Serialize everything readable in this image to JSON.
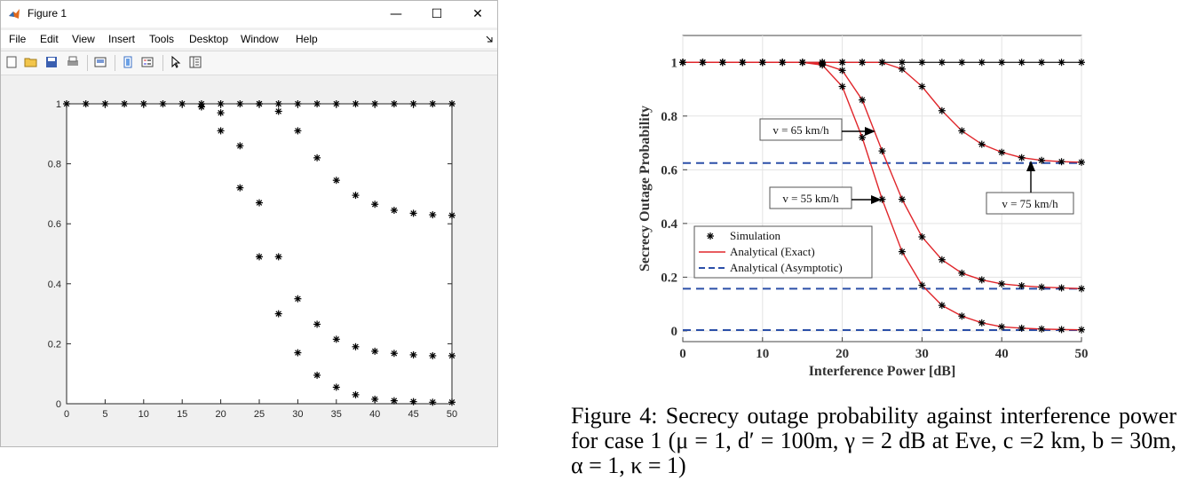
{
  "window": {
    "title": "Figure 1",
    "controls": {
      "minimize": "—",
      "maximize": "☐",
      "close": "✕"
    },
    "menu": [
      "File",
      "Edit",
      "View",
      "Insert",
      "Tools",
      "Desktop",
      "Window",
      "Help"
    ],
    "toolbar_icons": [
      "new-figure-icon",
      "open-file-icon",
      "save-icon",
      "print-icon",
      "print-preview-icon",
      "link-plot-icon",
      "insert-legend-icon",
      "pointer-icon",
      "property-editor-icon"
    ]
  },
  "matlab_plot": {
    "chart_data": {
      "type": "scatter",
      "marker": "*",
      "marker_color": "#000000",
      "xlim": [
        0,
        50
      ],
      "ylim": [
        0,
        1
      ],
      "x_ticks": [
        "0",
        "5",
        "10",
        "15",
        "20",
        "25",
        "30",
        "35",
        "40",
        "45",
        "50"
      ],
      "y_ticks": [
        "0",
        "0.2",
        "0.4",
        "0.6",
        "0.8",
        "1"
      ],
      "series": [
        {
          "x": [
            0,
            2.5,
            5,
            7.5,
            10,
            12.5,
            15,
            17.5,
            20,
            22.5,
            25,
            27.5,
            30,
            32.5,
            35,
            37.5,
            40,
            42.5,
            45,
            47.5,
            50
          ],
          "y": [
            1,
            1,
            1,
            1,
            1,
            1,
            1,
            1,
            1,
            1,
            1,
            1,
            1,
            1,
            1,
            1,
            1,
            1,
            1,
            1,
            1
          ]
        },
        {
          "x": [
            17.5,
            20,
            22.5,
            25,
            27.5,
            30,
            32.5,
            35,
            37.5,
            40,
            42.5,
            45,
            47.5,
            50
          ],
          "y": [
            0.99,
            0.97,
            0.86,
            0.67,
            0.49,
            0.35,
            0.265,
            0.215,
            0.19,
            0.175,
            0.168,
            0.163,
            0.16,
            0.16
          ]
        },
        {
          "x": [
            17.5,
            20,
            22.5,
            25,
            27.5,
            30,
            32.5,
            35,
            37.5,
            40,
            42.5,
            45,
            47.5,
            50
          ],
          "y": [
            0.99,
            0.91,
            0.72,
            0.49,
            0.3,
            0.17,
            0.095,
            0.055,
            0.03,
            0.015,
            0.01,
            0.007,
            0.005,
            0.005
          ]
        },
        {
          "x": [
            25,
            27.5,
            30,
            32.5,
            35,
            37.5,
            40,
            42.5,
            45,
            47.5,
            50
          ],
          "y": [
            1,
            0.975,
            0.91,
            0.82,
            0.745,
            0.695,
            0.665,
            0.645,
            0.635,
            0.63,
            0.628
          ]
        }
      ]
    }
  },
  "paper_figure": {
    "chart_data": {
      "type": "line",
      "xlabel": "Interference Power  [dB]",
      "ylabel": "Secrecy Outage Probability",
      "xlim": [
        0,
        50
      ],
      "ylim": [
        0,
        1
      ],
      "x_ticks": [
        "0",
        "10",
        "20",
        "30",
        "40",
        "50"
      ],
      "y_ticks": [
        "0",
        "0.2",
        "0.4",
        "0.6",
        "0.8",
        "1"
      ],
      "colors": {
        "exact": "#e0262b",
        "asymptotic": "#2b4fa8",
        "sim": "#000000"
      },
      "legend": {
        "placement": "bottom-left",
        "entries": [
          "Simulation",
          "Analytical (Exact)",
          "Analytical (Asymptotic)"
        ]
      },
      "series": [
        {
          "x": [
            0,
            2.5,
            5,
            7.5,
            10,
            12.5,
            15,
            17.5,
            20,
            22.5,
            25,
            27.5,
            30,
            32.5,
            35,
            37.5,
            40,
            42.5,
            45,
            47.5,
            50
          ],
          "y": [
            1,
            1,
            1,
            1,
            1,
            1,
            1,
            1,
            1,
            1,
            1,
            1,
            1,
            1,
            1,
            1,
            1,
            1,
            1,
            1,
            1
          ]
        },
        {
          "x": [
            0,
            2.5,
            5,
            7.5,
            10,
            12.5,
            15,
            17.5,
            20,
            22.5,
            25,
            27.5,
            30,
            32.5,
            35,
            37.5,
            40,
            42.5,
            45,
            47.5,
            50
          ],
          "y": [
            1,
            1,
            1,
            1,
            1,
            1,
            1,
            0.995,
            0.97,
            0.86,
            0.67,
            0.49,
            0.35,
            0.265,
            0.215,
            0.19,
            0.175,
            0.168,
            0.163,
            0.16,
            0.157
          ]
        },
        {
          "x": [
            0,
            2.5,
            5,
            7.5,
            10,
            12.5,
            15,
            17.5,
            20,
            22.5,
            25,
            27.5,
            30,
            32.5,
            35,
            37.5,
            40,
            42.5,
            45,
            47.5,
            50
          ],
          "y": [
            1,
            1,
            1,
            1,
            1,
            1,
            1,
            0.99,
            0.91,
            0.72,
            0.49,
            0.295,
            0.17,
            0.095,
            0.055,
            0.03,
            0.015,
            0.01,
            0.007,
            0.005,
            0.004
          ]
        },
        {
          "x": [
            0,
            2.5,
            5,
            7.5,
            10,
            12.5,
            15,
            17.5,
            20,
            22.5,
            25,
            27.5,
            30,
            32.5,
            35,
            37.5,
            40,
            42.5,
            45,
            47.5,
            50
          ],
          "y": [
            1,
            1,
            1,
            1,
            1,
            1,
            1,
            1,
            1,
            1,
            1,
            0.975,
            0.91,
            0.82,
            0.745,
            0.695,
            0.665,
            0.645,
            0.635,
            0.63,
            0.628
          ]
        }
      ],
      "asymptotes": [
        0.625,
        0.157,
        0.003
      ],
      "annotations": [
        "v = 65 km/h",
        "v = 55 km/h",
        "v = 75 km/h"
      ]
    }
  },
  "caption": "Figure 4: Secrecy outage probability against interference power for case 1 (μ = 1, d′ = 100m, γ = 2 dB at Eve, c =2 km, b = 30m, α = 1, κ = 1)"
}
